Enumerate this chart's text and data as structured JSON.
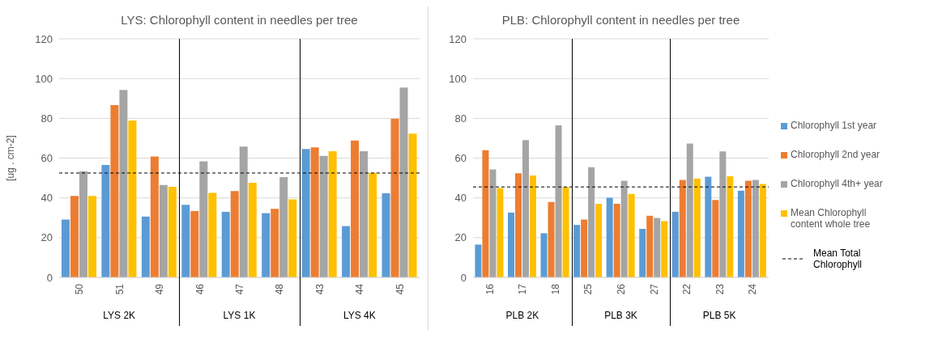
{
  "chart_data": [
    {
      "type": "bar",
      "title": "LYS: Chlorophyll content in needles per tree",
      "ylabel": "[ug . cm-2]",
      "categories": [
        "50",
        "51",
        "49",
        "46",
        "47",
        "48",
        "43",
        "44",
        "45"
      ],
      "series": [
        {
          "color": "#5b9bd5",
          "values": [
            29.1,
            56.5,
            30.6,
            36.5,
            33,
            32.3,
            64.6,
            25.8,
            42.3
          ]
        },
        {
          "color": "#ed7d31",
          "values": [
            41,
            86.6,
            60.8,
            33.4,
            43.4,
            34.5,
            65.4,
            68.8,
            79.8
          ]
        },
        {
          "color": "#a5a5a5",
          "values": [
            53.4,
            94.3,
            46.5,
            58.4,
            65.8,
            50.4,
            61.1,
            63.5,
            95.5
          ]
        },
        {
          "color": "#ffc000",
          "values": [
            41,
            78.9,
            45.6,
            42.5,
            47.6,
            39.3,
            63.5,
            52.6,
            72.3
          ]
        }
      ],
      "ylim": [
        0,
        120
      ],
      "yticks": [
        0,
        20,
        40,
        60,
        80,
        100,
        120
      ],
      "grid": "y",
      "ref_lines": [
        {
          "axis": "y",
          "value": 52.5,
          "color": "#000000",
          "line_style": "dashed"
        }
      ],
      "annotations": [
        "LYS 2K",
        "LYS 1K",
        "LYS 4K"
      ]
    },
    {
      "type": "bar",
      "title": "PLB: Chlorophyll content in needles per tree",
      "categories": [
        "16",
        "17",
        "18",
        "25",
        "26",
        "27",
        "22",
        "23",
        "24"
      ],
      "series": [
        {
          "name": "Chlorophyll 1st year",
          "color": "#5b9bd5",
          "values": [
            16.5,
            32.6,
            22.2,
            26.4,
            40.1,
            24.4,
            33,
            50.6,
            43.6
          ]
        },
        {
          "name": "Chlorophyll 2nd year",
          "color": "#ed7d31",
          "values": [
            64,
            52.4,
            37.9,
            29.1,
            37,
            31,
            49,
            39,
            48.6
          ]
        },
        {
          "name": "Chlorophyll 4th+ year",
          "color": "#a5a5a5",
          "values": [
            54.3,
            69.1,
            76.5,
            55.4,
            48.6,
            29.9,
            67.3,
            63.4,
            49
          ]
        },
        {
          "name": "Mean Chlorophyll content whole tree",
          "color": "#ffc000",
          "values": [
            44.9,
            51.3,
            45.5,
            37,
            42,
            28.3,
            49.7,
            50.8,
            47
          ]
        }
      ],
      "ylim": [
        0,
        120
      ],
      "yticks": [
        0,
        20,
        40,
        60,
        80,
        100,
        120
      ],
      "grid": "y",
      "legend": "right",
      "ref_lines": [
        {
          "axis": "y",
          "value": 45.5,
          "label": "Mean Total Chlorophyll",
          "color": "#000000",
          "line_style": "dashed"
        }
      ],
      "annotations": [
        "PLB 2K",
        "PLB 3K",
        "PLB 5K"
      ]
    }
  ]
}
